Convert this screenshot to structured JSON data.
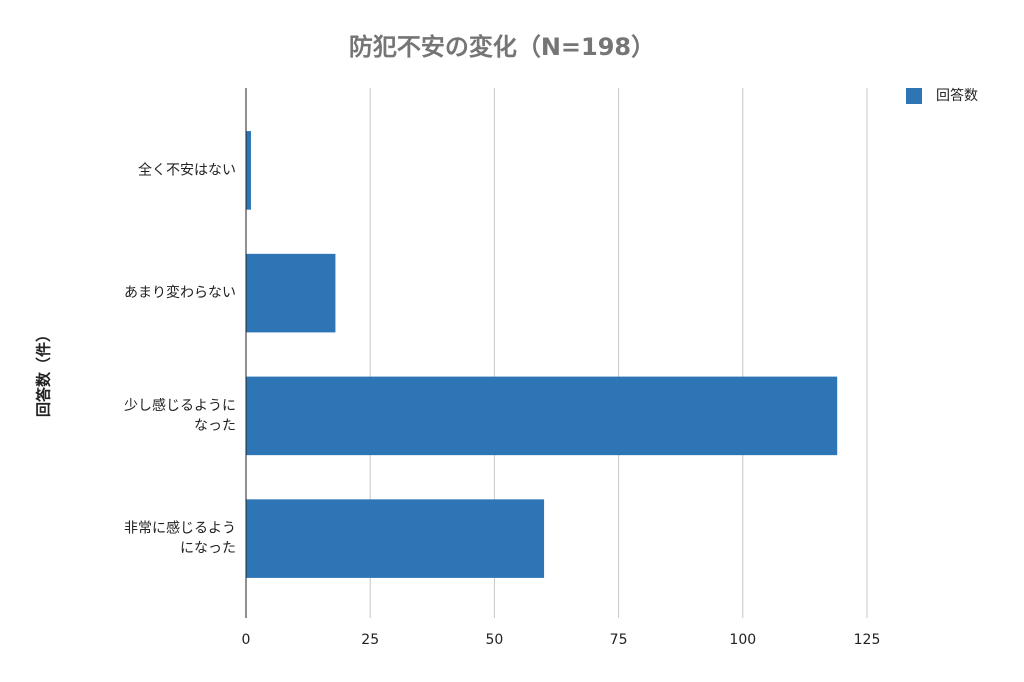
{
  "chart_data": {
    "type": "bar",
    "orientation": "horizontal",
    "title": "防犯不安の変化（N=198）",
    "y_label": "回答数（件）",
    "categories": [
      "全く不安はない",
      "あまり変わらない",
      "少し感じるようになった",
      "非常に感じるようになった"
    ],
    "series": [
      {
        "name": "回答数",
        "color": "#2e75b6",
        "values": [
          1,
          18,
          119,
          60
        ]
      }
    ],
    "xlim": [
      0,
      125
    ],
    "xticks": [
      0,
      25,
      50,
      75,
      100,
      125
    ],
    "grid": true,
    "legend": "top-right"
  }
}
